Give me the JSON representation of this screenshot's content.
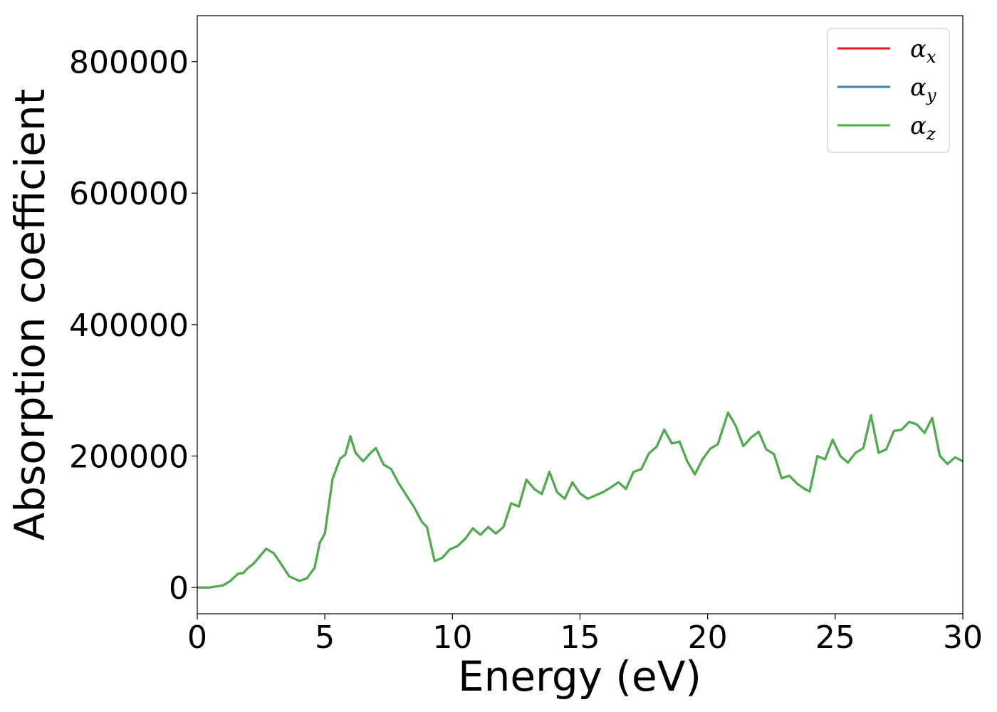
{
  "chart_data": {
    "type": "line",
    "xlabel": "Energy (eV)",
    "ylabel": "Absorption coefficient",
    "xlim": [
      0,
      30
    ],
    "ylim": [
      -40000,
      870000
    ],
    "xticks": [
      0,
      5,
      10,
      15,
      20,
      25,
      30
    ],
    "yticks": [
      0,
      200000,
      400000,
      600000,
      800000
    ],
    "grid": false,
    "legend": {
      "placement": "top-right",
      "entries": [
        {
          "symbol": "α",
          "sub": "x",
          "color": "#e41a1c"
        },
        {
          "symbol": "α",
          "sub": "y",
          "color": "#377eb8"
        },
        {
          "symbol": "α",
          "sub": "z",
          "color": "#4daf4a"
        }
      ]
    },
    "x": [
      0,
      0.5,
      1.0,
      1.3,
      1.6,
      1.8,
      2.0,
      2.2,
      2.4,
      2.7,
      3.0,
      3.3,
      3.6,
      4.0,
      4.3,
      4.6,
      4.8,
      5.0,
      5.3,
      5.6,
      5.8,
      6.0,
      6.2,
      6.5,
      6.8,
      7.0,
      7.3,
      7.6,
      7.9,
      8.2,
      8.5,
      8.8,
      9.0,
      9.3,
      9.6,
      9.9,
      10.2,
      10.5,
      10.8,
      11.1,
      11.4,
      11.7,
      12.0,
      12.3,
      12.6,
      12.9,
      13.2,
      13.5,
      13.8,
      14.1,
      14.4,
      14.7,
      15.0,
      15.3,
      15.6,
      15.9,
      16.2,
      16.5,
      16.8,
      17.1,
      17.4,
      17.7,
      18.0,
      18.3,
      18.6,
      18.9,
      19.2,
      19.5,
      19.8,
      20.1,
      20.4,
      20.8,
      21.1,
      21.4,
      21.7,
      22.0,
      22.3,
      22.6,
      22.9,
      23.2,
      23.5,
      23.8,
      24.0,
      24.3,
      24.6,
      24.9,
      25.2,
      25.5,
      25.8,
      26.1,
      26.4,
      26.7,
      27.0,
      27.3,
      27.6,
      27.9,
      28.2,
      28.5,
      28.8,
      29.1,
      29.4,
      29.7,
      30.0
    ],
    "series": [
      {
        "color": "#e41a1c",
        "values": [
          0,
          0,
          3000,
          10000,
          21000,
          22000,
          30000,
          36000,
          45000,
          59000,
          52000,
          35000,
          17000,
          10000,
          14000,
          30000,
          68000,
          82000,
          165000,
          196000,
          202000,
          230000,
          205000,
          192000,
          205000,
          212000,
          187000,
          180000,
          158000,
          140000,
          122000,
          100000,
          92000,
          40000,
          45000,
          58000,
          63000,
          74000,
          90000,
          80000,
          92000,
          82000,
          92000,
          128000,
          123000,
          164000,
          150000,
          142000,
          176000,
          145000,
          135000,
          160000,
          143000,
          135000,
          140000,
          145000,
          152000,
          160000,
          150000,
          176000,
          180000,
          204000,
          214000,
          240000,
          219000,
          222000,
          192000,
          172000,
          195000,
          211000,
          218000,
          266000,
          246000,
          215000,
          228000,
          237000,
          210000,
          203000,
          166000,
          170000,
          158000,
          150000,
          146000,
          200000,
          195000,
          225000,
          200000,
          190000,
          205000,
          212000,
          262000,
          205000,
          210000,
          238000,
          240000,
          252000,
          248000,
          235000,
          258000,
          200000,
          188000,
          198000,
          192000
        ]
      },
      {
        "color": "#377eb8",
        "values": [
          0,
          0,
          3000,
          10000,
          21000,
          22000,
          30000,
          36000,
          45000,
          59000,
          52000,
          35000,
          17000,
          10000,
          14000,
          30000,
          68000,
          82000,
          165000,
          196000,
          202000,
          230000,
          205000,
          192000,
          205000,
          212000,
          187000,
          180000,
          158000,
          140000,
          122000,
          100000,
          92000,
          40000,
          45000,
          58000,
          63000,
          74000,
          90000,
          80000,
          92000,
          82000,
          92000,
          128000,
          123000,
          164000,
          150000,
          142000,
          176000,
          145000,
          135000,
          160000,
          143000,
          135000,
          140000,
          145000,
          152000,
          160000,
          150000,
          176000,
          180000,
          204000,
          214000,
          240000,
          219000,
          222000,
          192000,
          172000,
          195000,
          211000,
          218000,
          266000,
          246000,
          215000,
          228000,
          237000,
          210000,
          203000,
          166000,
          170000,
          158000,
          150000,
          146000,
          200000,
          195000,
          225000,
          200000,
          190000,
          205000,
          212000,
          262000,
          205000,
          210000,
          238000,
          240000,
          252000,
          248000,
          235000,
          258000,
          200000,
          188000,
          198000,
          192000
        ]
      },
      {
        "color": "#4daf4a",
        "values": [
          0,
          0,
          3000,
          10000,
          21000,
          22000,
          30000,
          36000,
          45000,
          59000,
          52000,
          35000,
          17000,
          10000,
          14000,
          30000,
          68000,
          82000,
          165000,
          196000,
          202000,
          230000,
          205000,
          192000,
          205000,
          212000,
          187000,
          180000,
          158000,
          140000,
          122000,
          100000,
          92000,
          40000,
          45000,
          58000,
          63000,
          74000,
          90000,
          80000,
          92000,
          82000,
          92000,
          128000,
          123000,
          164000,
          150000,
          142000,
          176000,
          145000,
          135000,
          160000,
          143000,
          135000,
          140000,
          145000,
          152000,
          160000,
          150000,
          176000,
          180000,
          204000,
          214000,
          240000,
          219000,
          222000,
          192000,
          172000,
          195000,
          211000,
          218000,
          266000,
          246000,
          215000,
          228000,
          237000,
          210000,
          203000,
          166000,
          170000,
          158000,
          150000,
          146000,
          200000,
          195000,
          225000,
          200000,
          190000,
          205000,
          212000,
          262000,
          205000,
          210000,
          238000,
          240000,
          252000,
          248000,
          235000,
          258000,
          200000,
          188000,
          198000,
          192000
        ]
      }
    ]
  }
}
